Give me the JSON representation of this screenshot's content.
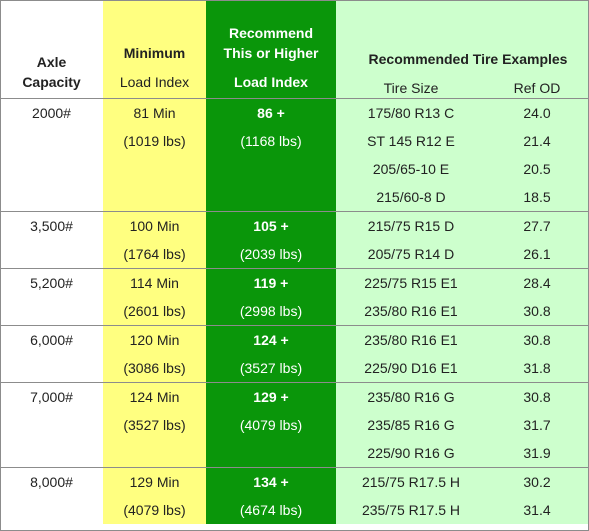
{
  "header": {
    "axle_line1": "Axle",
    "axle_line2": "Capacity",
    "min_line1": "Minimum",
    "min_line2": "Load Index",
    "rec_line1": "Recommend",
    "rec_line2": "This or Higher",
    "rec_line3": "Load Index",
    "examples_title": "Recommended Tire Examples",
    "tire_size": "Tire Size",
    "ref_od": "Ref OD"
  },
  "groups": [
    {
      "axle": "2000#",
      "min_index": "81 Min",
      "min_lbs": "(1019 lbs)",
      "rec_index": "86 +",
      "rec_lbs": "(1168 lbs)",
      "tires": [
        {
          "size": "175/80 R13 C",
          "od": "24.0"
        },
        {
          "size": "ST 145 R12 E",
          "od": "21.4"
        },
        {
          "size": "205/65-10 E",
          "od": "20.5"
        },
        {
          "size": "215/60-8 D",
          "od": "18.5"
        }
      ]
    },
    {
      "axle": "3,500#",
      "min_index": "100 Min",
      "min_lbs": "(1764 lbs)",
      "rec_index": "105 +",
      "rec_lbs": "(2039 lbs)",
      "tires": [
        {
          "size": "215/75 R15 D",
          "od": "27.7"
        },
        {
          "size": "205/75 R14 D",
          "od": "26.1"
        }
      ]
    },
    {
      "axle": "5,200#",
      "min_index": "114 Min",
      "min_lbs": "(2601 lbs)",
      "rec_index": "119 +",
      "rec_lbs": "(2998 lbs)",
      "tires": [
        {
          "size": "225/75 R15 E1",
          "od": "28.4"
        },
        {
          "size": "235/80 R16 E1",
          "od": "30.8"
        }
      ]
    },
    {
      "axle": "6,000#",
      "min_index": "120 Min",
      "min_lbs": "(3086 lbs)",
      "rec_index": "124 +",
      "rec_lbs": "(3527 lbs)",
      "tires": [
        {
          "size": "235/80 R16 E1",
          "od": "30.8"
        },
        {
          "size": "225/90 D16 E1",
          "od": "31.8"
        }
      ]
    },
    {
      "axle": "7,000#",
      "min_index": "124 Min",
      "min_lbs": "(3527 lbs)",
      "rec_index": "129 +",
      "rec_lbs": "(4079 lbs)",
      "tires": [
        {
          "size": "235/80 R16 G",
          "od": "30.8"
        },
        {
          "size": "235/85 R16 G",
          "od": "31.7"
        },
        {
          "size": "225/90 R16 G",
          "od": "31.9"
        }
      ]
    },
    {
      "axle": "8,000#",
      "min_index": "129 Min",
      "min_lbs": "(4079 lbs)",
      "rec_index": "134 +",
      "rec_lbs": "(4674 lbs)",
      "tires": [
        {
          "size": "215/75 R17.5 H",
          "od": "30.2"
        },
        {
          "size": "235/75 R17.5 H",
          "od": "31.4"
        }
      ]
    }
  ],
  "colors": {
    "yellow_column": "#ffff80",
    "green_column": "#0a960a",
    "light_green_columns": "#cdffcd",
    "grid_lines": "#8c8c8c"
  }
}
